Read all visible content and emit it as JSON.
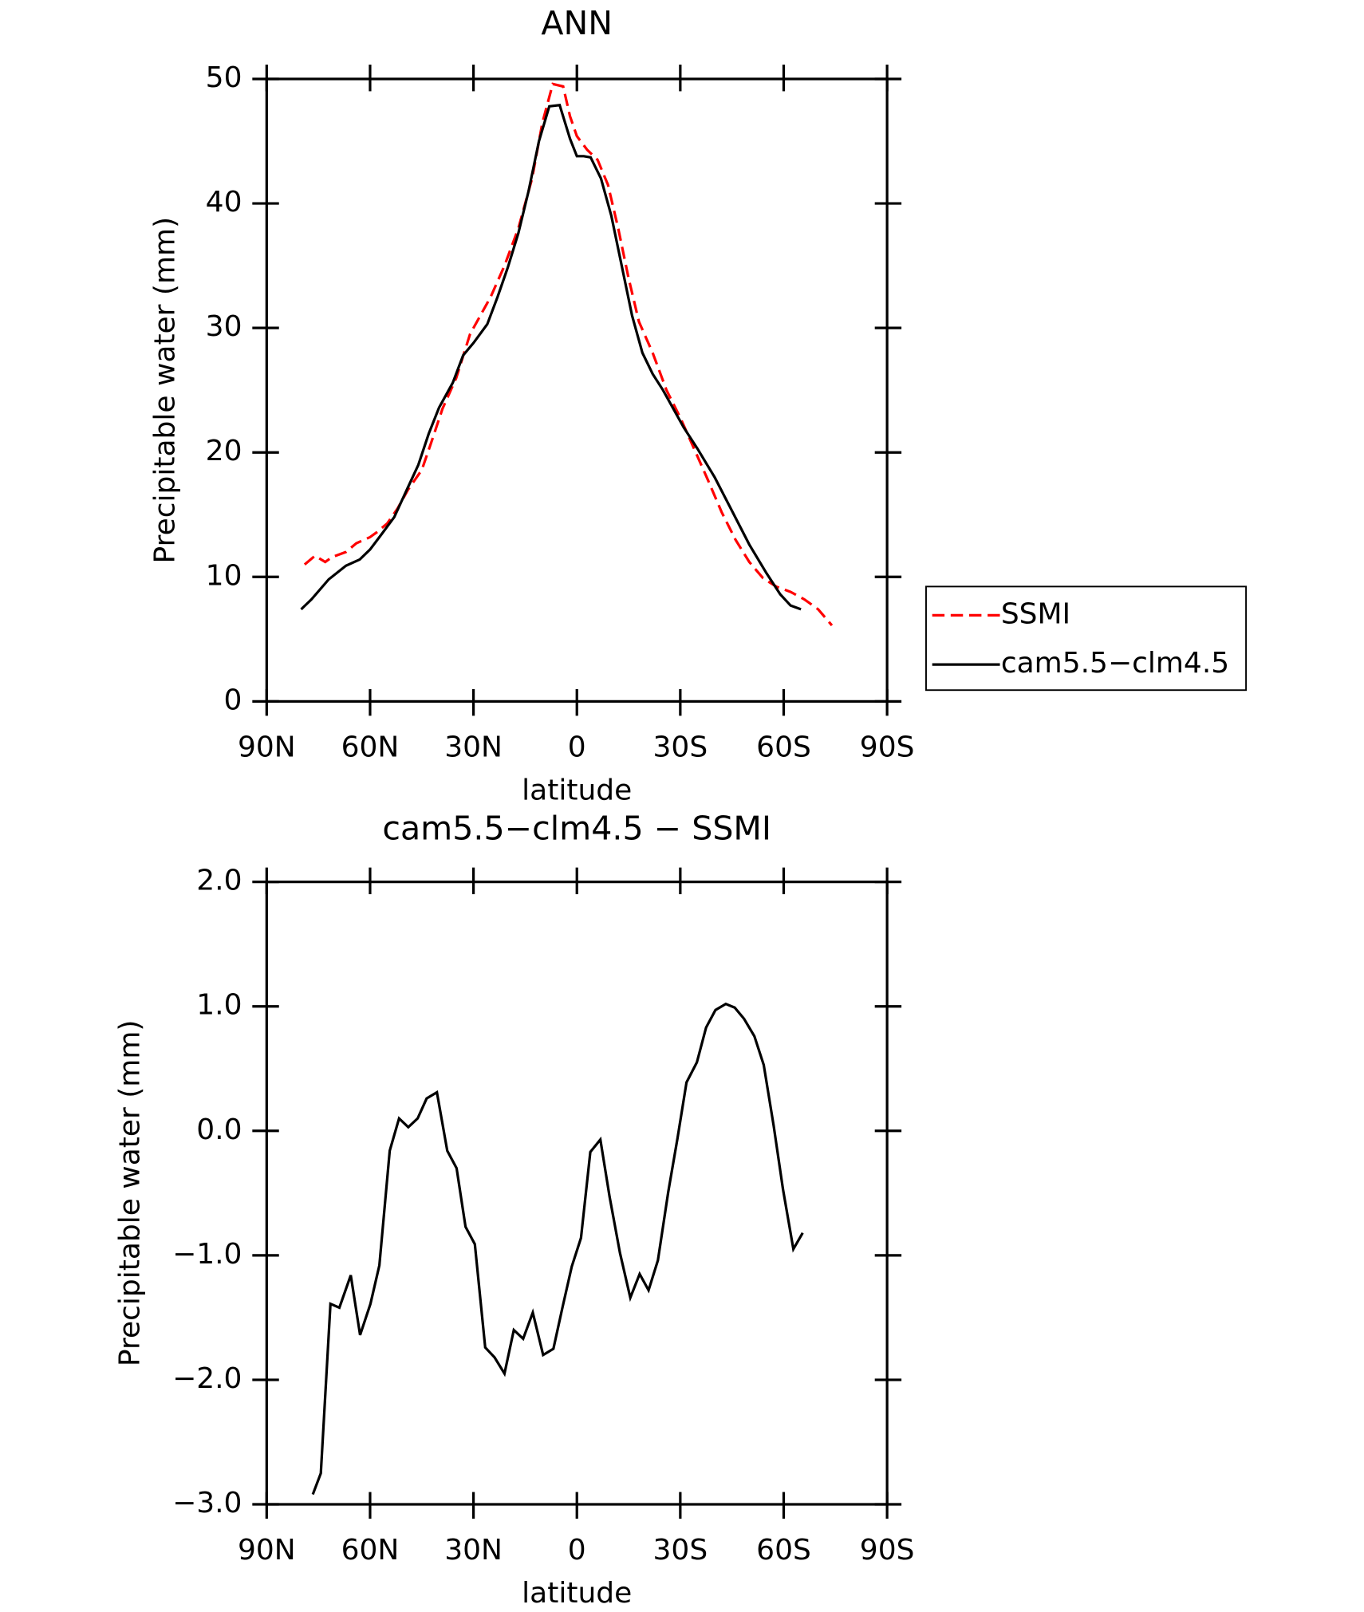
{
  "chart_data": [
    {
      "type": "line",
      "title": "ANN",
      "xlabel": "latitude",
      "ylabel": "Precipitable water (mm)",
      "xlim": [
        90,
        -90
      ],
      "xticks": [
        {
          "value": 90,
          "label": "90N"
        },
        {
          "value": 60,
          "label": "60N"
        },
        {
          "value": 30,
          "label": "30N"
        },
        0,
        {
          "value": -30,
          "label": "30S"
        },
        {
          "value": -60,
          "label": "60S"
        },
        {
          "value": -90,
          "label": "90S"
        }
      ],
      "ylim": [
        0,
        50
      ],
      "yticks": [
        0,
        10,
        20,
        30,
        40,
        50
      ],
      "legend": "right",
      "series": [
        {
          "name": "SSMI",
          "color": "#ff0000",
          "dash": "dashed",
          "x": [
            79,
            76,
            73,
            71,
            67,
            64,
            60,
            58,
            55,
            52,
            49,
            45,
            42,
            39,
            35,
            31,
            28,
            25,
            21,
            17,
            13,
            10,
            7,
            4,
            2,
            0,
            -3,
            -6,
            -9,
            -12,
            -15,
            -18,
            -22,
            -26,
            -30,
            -34,
            -38,
            -42,
            -46,
            -50,
            -54,
            -58,
            -62,
            -66,
            -70,
            -74
          ],
          "values": [
            11.0,
            11.7,
            11.2,
            11.6,
            12.0,
            12.7,
            13.2,
            13.6,
            14.3,
            15.5,
            17.0,
            18.6,
            21.0,
            23.5,
            26.0,
            29.5,
            31.0,
            32.5,
            35.0,
            38.0,
            42.0,
            46.5,
            49.6,
            49.4,
            47.0,
            45.4,
            44.3,
            43.5,
            41.5,
            38.0,
            34.0,
            30.5,
            28.0,
            25.0,
            22.8,
            20.3,
            17.8,
            15.2,
            13.0,
            11.2,
            9.9,
            9.2,
            8.8,
            8.2,
            7.4,
            6.1
          ]
        },
        {
          "name": "cam5.5−clm4.5",
          "color": "#000000",
          "dash": "solid",
          "x": [
            80,
            77,
            72,
            67,
            63,
            60,
            57,
            53,
            50,
            46,
            43,
            40,
            36,
            33,
            30,
            26,
            23,
            20,
            17,
            14,
            11,
            8,
            5,
            2,
            0,
            -2,
            -4,
            -7,
            -10,
            -13,
            -16,
            -19,
            -22,
            -25,
            -28,
            -31,
            -35,
            -40,
            -45,
            -50,
            -55,
            -59,
            -62,
            -65
          ],
          "values": [
            7.4,
            8.2,
            9.8,
            10.9,
            11.4,
            12.2,
            13.3,
            14.8,
            16.6,
            19.0,
            21.5,
            23.6,
            25.6,
            27.8,
            28.8,
            30.3,
            32.5,
            34.9,
            37.6,
            41.0,
            45.0,
            47.8,
            47.9,
            45.2,
            43.8,
            43.8,
            43.7,
            42.0,
            39.0,
            35.0,
            31.0,
            28.0,
            26.3,
            25.0,
            23.5,
            22.0,
            20.3,
            18.0,
            15.3,
            12.6,
            10.3,
            8.6,
            7.7,
            7.4
          ]
        }
      ]
    },
    {
      "type": "line",
      "title": "cam5.5−clm4.5 − SSMI",
      "xlabel": "latitude",
      "ylabel": "Precipitable water (mm)",
      "xlim": [
        90,
        -90
      ],
      "xticks": [
        {
          "value": 90,
          "label": "90N"
        },
        {
          "value": 60,
          "label": "60N"
        },
        {
          "value": 30,
          "label": "30N"
        },
        0,
        {
          "value": -30,
          "label": "30S"
        },
        {
          "value": -60,
          "label": "60S"
        },
        {
          "value": -90,
          "label": "90S"
        }
      ],
      "ylim": [
        -3,
        2
      ],
      "yticks": [
        {
          "value": -3,
          "label": "−3.0"
        },
        {
          "value": -2,
          "label": "−2.0"
        },
        {
          "value": -1,
          "label": "−1.0"
        },
        {
          "value": 0,
          "label": "0.0"
        },
        {
          "value": 1,
          "label": "1.0"
        },
        {
          "value": 2,
          "label": "2.0"
        }
      ],
      "series": [
        {
          "color": "#000000",
          "dash": "solid",
          "x": [
            76.6,
            74.3,
            71.5,
            68.9,
            65.6,
            62.9,
            59.9,
            57.3,
            54.3,
            51.6,
            48.9,
            46.2,
            43.6,
            40.6,
            37.6,
            34.9,
            32.3,
            29.6,
            26.6,
            23.9,
            21.0,
            18.3,
            15.6,
            12.8,
            9.8,
            6.8,
            4.2,
            1.5,
            -1.2,
            -3.9,
            -6.8,
            -9.5,
            -12.5,
            -15.5,
            -18.2,
            -20.8,
            -23.5,
            -26.5,
            -29.2,
            -31.8,
            -34.8,
            -37.5,
            -40.2,
            -43.2,
            -45.8,
            -48.5,
            -51.5,
            -54.2,
            -57.1,
            -59.8,
            -62.8,
            -65.5
          ],
          "values": [
            -2.92,
            -2.75,
            -1.39,
            -1.42,
            -1.16,
            -1.64,
            -1.39,
            -1.08,
            -0.16,
            0.1,
            0.03,
            0.1,
            0.26,
            0.31,
            -0.16,
            -0.3,
            -0.77,
            -0.91,
            -1.74,
            -1.82,
            -1.95,
            -1.6,
            -1.67,
            -1.46,
            -1.8,
            -1.75,
            -1.42,
            -1.09,
            -0.86,
            -0.17,
            -0.07,
            -0.53,
            -0.98,
            -1.34,
            -1.15,
            -1.28,
            -1.04,
            -0.49,
            -0.06,
            0.39,
            0.55,
            0.83,
            0.97,
            1.02,
            0.99,
            0.9,
            0.76,
            0.53,
            0.04,
            -0.47,
            -0.95,
            -0.82
          ]
        }
      ]
    }
  ]
}
